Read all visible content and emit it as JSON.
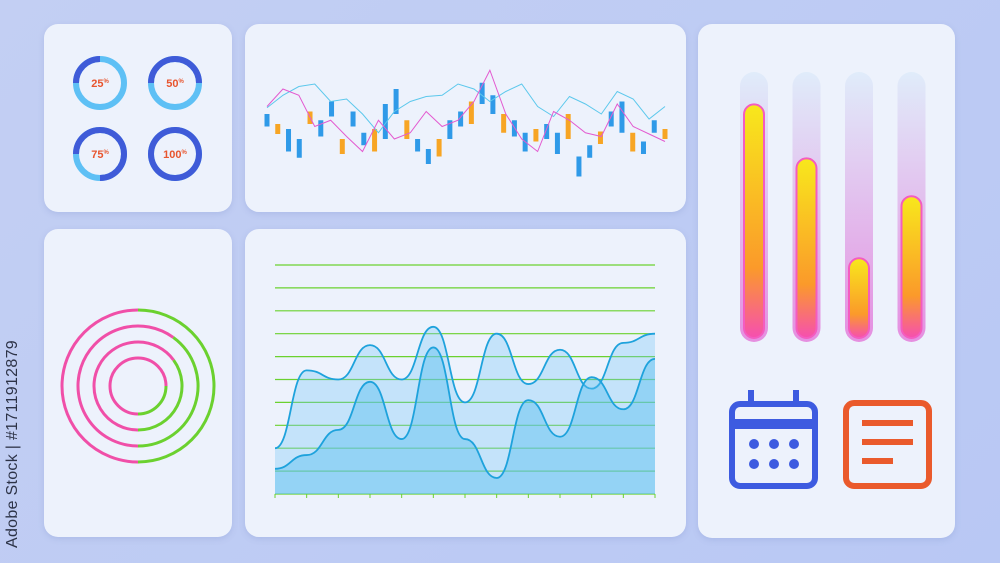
{
  "watermark": "Adobe Stock | #1711912879",
  "colors": {
    "dark_blue": "#3f5bd8",
    "light_blue": "#5ec0f5",
    "label_orange": "#e8552e",
    "pink": "#f04fa8",
    "green": "#6bd12f",
    "calendar": "#3d5be0",
    "document": "#ea5a2c"
  },
  "progress_rings": [
    {
      "label": "25",
      "unit": "%",
      "value": 0.25
    },
    {
      "label": "50",
      "unit": "%",
      "value": 0.5
    },
    {
      "label": "75",
      "unit": "%",
      "value": 0.75
    },
    {
      "label": "100",
      "unit": "%",
      "value": 1.0
    }
  ],
  "concentric_rings": [
    {
      "pink": 0.5
    },
    {
      "pink": 0.6
    },
    {
      "pink": 0.65
    },
    {
      "pink": 0.75
    }
  ],
  "level_bars": [
    0.88,
    0.68,
    0.31,
    0.54
  ],
  "icons": {
    "calendar": "calendar-icon",
    "document": "document-icon"
  },
  "chart_data": [
    {
      "type": "candlestick",
      "candles": [
        [
          60,
          50
        ],
        [
          52,
          44
        ],
        [
          48,
          30
        ],
        [
          40,
          25
        ],
        [
          62,
          52
        ],
        [
          55,
          42
        ],
        [
          70,
          58
        ],
        [
          40,
          28
        ],
        [
          62,
          50
        ],
        [
          45,
          35
        ],
        [
          48,
          30
        ],
        [
          68,
          40
        ],
        [
          80,
          60
        ],
        [
          55,
          40
        ],
        [
          40,
          30
        ],
        [
          32,
          20
        ],
        [
          40,
          26
        ],
        [
          55,
          40
        ],
        [
          62,
          50
        ],
        [
          70,
          52
        ],
        [
          85,
          68
        ],
        [
          75,
          60
        ],
        [
          60,
          45
        ],
        [
          55,
          42
        ],
        [
          45,
          30
        ],
        [
          48,
          38
        ],
        [
          52,
          40
        ],
        [
          45,
          28
        ],
        [
          60,
          40
        ],
        [
          26,
          10
        ],
        [
          35,
          25
        ],
        [
          46,
          36
        ],
        [
          62,
          50
        ],
        [
          70,
          45
        ],
        [
          45,
          30
        ],
        [
          38,
          28
        ],
        [
          55,
          45
        ],
        [
          48,
          40
        ]
      ],
      "line_cyan": [
        65,
        75,
        82,
        84,
        70,
        72,
        60,
        45,
        62,
        70,
        74,
        75,
        84,
        80,
        70,
        78,
        84,
        66,
        58,
        74,
        68,
        60,
        78,
        72,
        56,
        66
      ],
      "line_magenta": [
        66,
        80,
        75,
        50,
        55,
        42,
        30,
        55,
        40,
        45,
        62,
        50,
        55,
        70,
        95,
        60,
        40,
        30,
        62,
        55,
        45,
        42,
        68,
        50,
        44,
        38
      ]
    },
    {
      "type": "area",
      "series": [
        {
          "values": [
            2,
            5.4,
            5,
            6.5,
            5,
            7.3,
            4,
            7,
            4.8,
            6.3,
            4.6,
            6.6,
            7
          ]
        },
        {
          "values": [
            1.1,
            1.7,
            2.8,
            4.9,
            2.4,
            6.4,
            2.4,
            0.7,
            4.1,
            2.5,
            5.1,
            3.7,
            5.9
          ]
        }
      ],
      "ylim": [
        0,
        10
      ],
      "grid": true
    }
  ]
}
